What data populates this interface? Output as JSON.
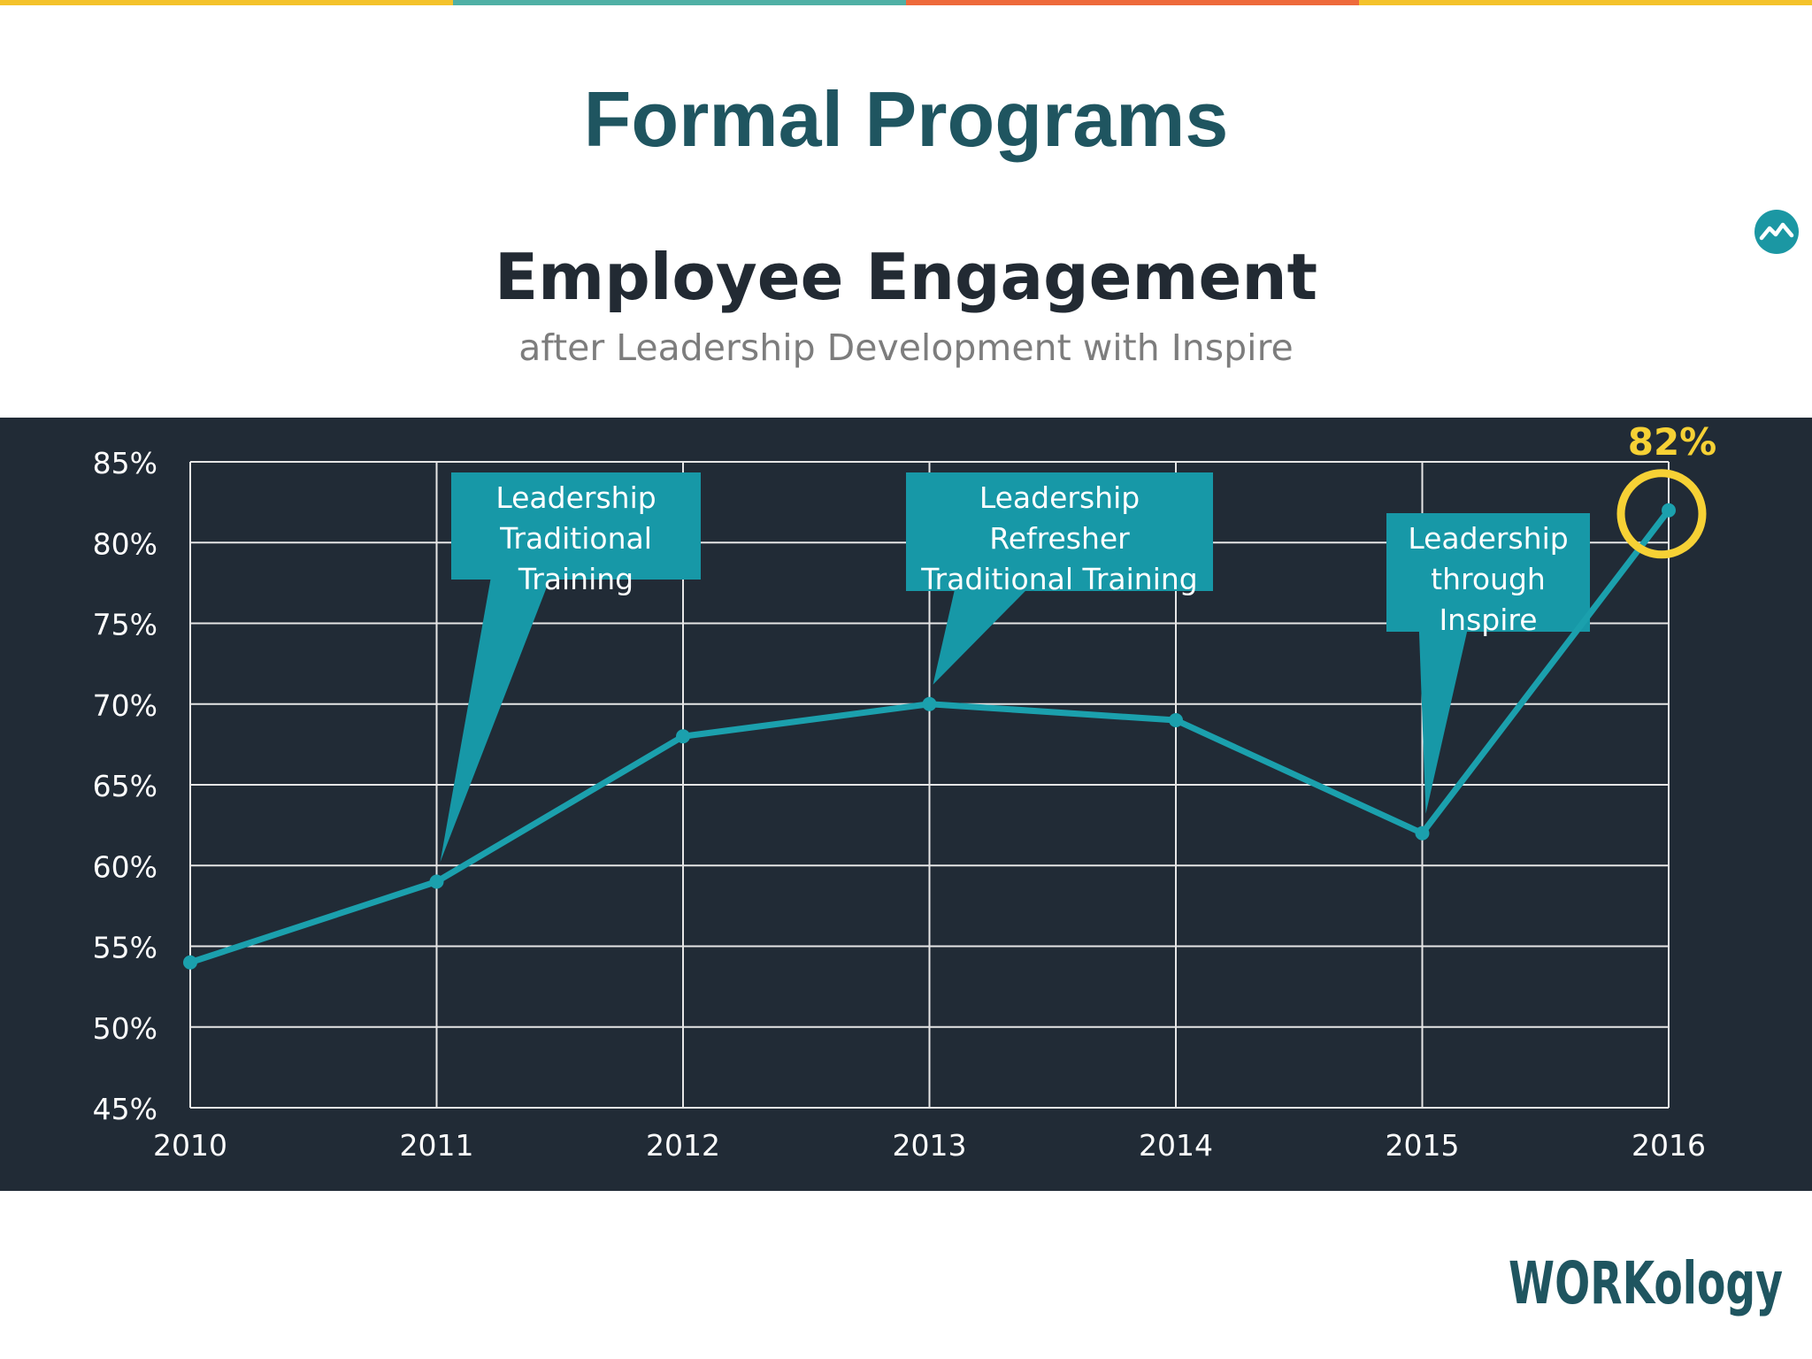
{
  "slide": {
    "title": "Formal Programs",
    "topbar_colors": [
      "#f4c22b",
      "#4fb0a5",
      "#ee6a3b",
      "#f4c22b"
    ]
  },
  "colors": {
    "panel_bg": "#212b36",
    "line": "#1ba0ad",
    "grid": "#e6e6e6",
    "callout_bg": "#1798a7",
    "highlight": "#f6d135",
    "title": "#1f5560"
  },
  "icons": {
    "badge": "mountain-badge-icon",
    "logo": "workology-logo"
  },
  "logo": {
    "text": "WORKology"
  },
  "chart_data": {
    "type": "line",
    "title": "Employee Engagement",
    "subtitle": "after Leadership Development with Inspire",
    "xlabel": "",
    "ylabel": "",
    "x": [
      "2010",
      "2011",
      "2012",
      "2013",
      "2014",
      "2015",
      "2016"
    ],
    "values": [
      54,
      59,
      68,
      70,
      69,
      62,
      82
    ],
    "ylim": [
      45,
      85
    ],
    "yticks": [
      45,
      50,
      55,
      60,
      65,
      70,
      75,
      80,
      85
    ],
    "ytick_labels": [
      "45%",
      "50%",
      "55%",
      "60%",
      "65%",
      "70%",
      "75%",
      "80%",
      "85%"
    ],
    "grid": true,
    "highlight": {
      "x": "2016",
      "label": "82%"
    },
    "annotations": [
      {
        "lines": [
          "Leadership",
          "Traditional",
          "Training"
        ],
        "points_to": "2011"
      },
      {
        "lines": [
          "Leadership",
          "Refresher",
          "Traditional Training"
        ],
        "points_to": "2013"
      },
      {
        "lines": [
          "Leadership",
          "through",
          "Inspire"
        ],
        "points_to": "2015"
      }
    ]
  }
}
